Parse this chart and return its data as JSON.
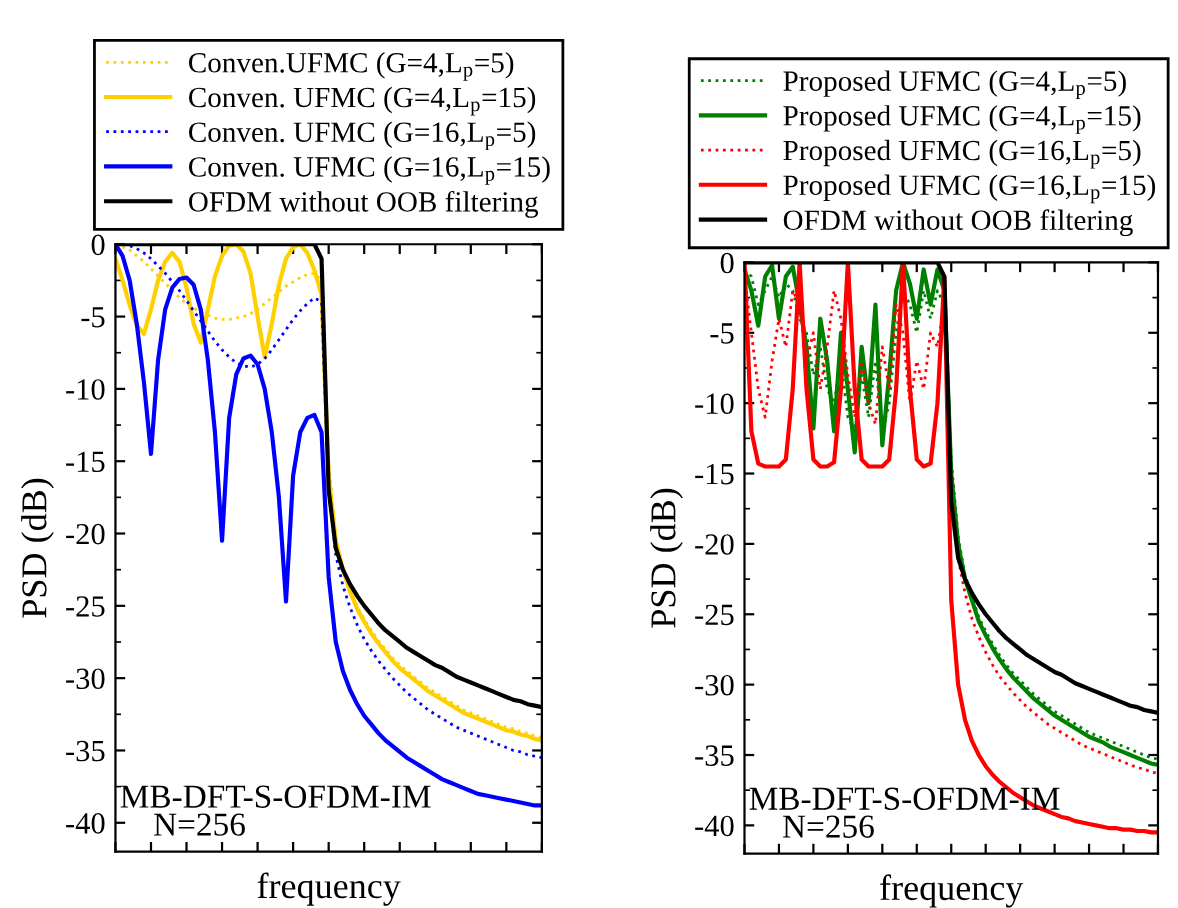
{
  "chart_data": [
    {
      "type": "line",
      "xlabel": "frequency",
      "ylabel": "PSD (dB)",
      "ylim": [
        -42,
        0
      ],
      "yticks": [
        0,
        -5,
        -10,
        -15,
        -20,
        -25,
        -30,
        -35,
        -40
      ],
      "grid": false,
      "legend": "top",
      "annotations": [
        "MB-DFT-S-OFDM-IM\n    N=256"
      ],
      "categories": [
        null,
        null,
        null,
        null,
        null,
        null,
        null,
        null,
        null,
        null,
        null,
        null,
        null,
        null,
        null,
        null,
        null,
        null,
        null,
        null,
        null,
        null,
        null,
        null,
        null,
        null,
        null,
        null,
        null,
        null,
        null,
        null,
        null,
        null,
        null,
        null,
        null,
        null,
        null,
        null,
        null,
        null,
        null,
        null,
        null,
        null,
        null,
        null,
        null,
        null,
        null,
        null,
        null,
        null,
        null,
        null,
        null,
        null,
        null,
        null,
        null
      ],
      "series": [
        {
          "name": "Conven.UFMC (G=4,L$_{p}$=5)",
          "color": "#ffd000",
          "line_style": "dotted",
          "values": [
            0,
            -0.2,
            -0.4,
            -0.8,
            -1.2,
            -1.7,
            -2.2,
            -2.7,
            -3.2,
            -3.7,
            -4.1,
            -4.4,
            -4.7,
            -4.9,
            -5.1,
            -5.2,
            -5.2,
            -5.1,
            -5,
            -4.8,
            -4.5,
            -4.1,
            -3.7,
            -3.3,
            -2.9,
            -2.6,
            -2.3,
            -2.1,
            -2,
            -2.5,
            -15,
            -20.2,
            -22.3,
            -23.8,
            -25,
            -25.9,
            -26.7,
            -27.4,
            -28,
            -28.6,
            -29.1,
            -29.5,
            -29.9,
            -30.3,
            -30.7,
            -31,
            -31.3,
            -31.6,
            -31.9,
            -32.2,
            -32.4,
            -32.6,
            -32.8,
            -33,
            -33.2,
            -33.4,
            -33.5,
            -33.7,
            -33.8,
            -34,
            -34.1
          ]
        },
        {
          "name": "Conven. UFMC (G=4,L$_{p}$=15)",
          "color": "#ffd000",
          "line_style": "solid",
          "values": [
            -1,
            -2.5,
            -4.2,
            -5.6,
            -6.2,
            -4.5,
            -2.5,
            -1.2,
            -0.6,
            -1.2,
            -3,
            -5.5,
            -6.8,
            -4.5,
            -2.2,
            -0.8,
            -0.1,
            0,
            -0.5,
            -2,
            -5,
            -7.8,
            -5.5,
            -2.8,
            -1,
            -0.2,
            0,
            -0.6,
            -1.8,
            -3.5,
            -16,
            -20.5,
            -22.5,
            -24,
            -25.2,
            -26.1,
            -26.9,
            -27.6,
            -28.2,
            -28.8,
            -29.3,
            -29.7,
            -30.1,
            -30.5,
            -30.9,
            -31.2,
            -31.5,
            -31.8,
            -32.1,
            -32.4,
            -32.6,
            -32.8,
            -33,
            -33.2,
            -33.4,
            -33.6,
            -33.7,
            -33.9,
            -34,
            -34.2,
            -34.3
          ]
        },
        {
          "name": "Conven. UFMC (G=16,L$_{p}$=5)",
          "color": "#0000ff",
          "line_style": "dotted",
          "values": [
            0,
            0,
            -0.1,
            -0.3,
            -0.6,
            -1,
            -1.5,
            -2,
            -2.6,
            -3.2,
            -3.9,
            -4.6,
            -5.3,
            -6,
            -6.7,
            -7.3,
            -7.8,
            -8.2,
            -8.4,
            -8.5,
            -8.3,
            -7.9,
            -7.3,
            -6.6,
            -5.9,
            -5.2,
            -4.6,
            -4.1,
            -3.7,
            -4,
            -17,
            -21.5,
            -23.6,
            -25.1,
            -26.3,
            -27.3,
            -28.1,
            -28.8,
            -29.4,
            -30,
            -30.5,
            -31,
            -31.4,
            -31.8,
            -32.2,
            -32.5,
            -32.8,
            -33.1,
            -33.4,
            -33.6,
            -33.8,
            -34,
            -34.2,
            -34.4,
            -34.6,
            -34.8,
            -35,
            -35.1,
            -35.3,
            -35.4,
            -35.5
          ]
        },
        {
          "name": "Conven. UFMC (G=16,L$_{p}$=15)",
          "color": "#0000ff",
          "line_style": "solid",
          "values": [
            0,
            -0.8,
            -2.5,
            -5.5,
            -9.5,
            -14.5,
            -8,
            -4.5,
            -3,
            -2.4,
            -2.3,
            -2.8,
            -4.5,
            -8,
            -13,
            -20.5,
            -12,
            -9,
            -7.9,
            -7.7,
            -8.3,
            -10,
            -13,
            -17.5,
            -24.7,
            -16,
            -13,
            -12,
            -11.8,
            -13,
            -23,
            -27.5,
            -29.5,
            -30.8,
            -31.8,
            -32.6,
            -33.2,
            -33.8,
            -34.3,
            -34.7,
            -35.1,
            -35.5,
            -35.8,
            -36.1,
            -36.4,
            -36.7,
            -37,
            -37.2,
            -37.4,
            -37.6,
            -37.8,
            -38,
            -38.1,
            -38.2,
            -38.3,
            -38.4,
            -38.5,
            -38.6,
            -38.7,
            -38.8,
            -38.8
          ]
        },
        {
          "name": "OFDM without OOB filtering",
          "color": "#000000",
          "line_style": "solid",
          "values": [
            0,
            0,
            0,
            0,
            0,
            0,
            0,
            0,
            0,
            0,
            0,
            0,
            0,
            0,
            0,
            0,
            0,
            0,
            0,
            0,
            0,
            0,
            0,
            0,
            0,
            0,
            0,
            0,
            0,
            -1,
            -17,
            -21,
            -22.5,
            -23.5,
            -24.3,
            -25,
            -25.6,
            -26.2,
            -26.7,
            -27.1,
            -27.5,
            -27.9,
            -28.2,
            -28.5,
            -28.8,
            -29.1,
            -29.3,
            -29.6,
            -29.9,
            -30.1,
            -30.3,
            -30.5,
            -30.7,
            -30.9,
            -31.1,
            -31.3,
            -31.5,
            -31.6,
            -31.8,
            -31.9,
            -32
          ]
        }
      ]
    },
    {
      "type": "line",
      "xlabel": "frequency",
      "ylabel": "PSD (dB)",
      "ylim": [
        -42,
        0
      ],
      "yticks": [
        0,
        -5,
        -10,
        -15,
        -20,
        -25,
        -30,
        -35,
        -40
      ],
      "grid": false,
      "legend": "top",
      "annotations": [
        "MB-DFT-S-OFDM-IM\n    N=256"
      ],
      "categories": [
        null,
        null,
        null,
        null,
        null,
        null,
        null,
        null,
        null,
        null,
        null,
        null,
        null,
        null,
        null,
        null,
        null,
        null,
        null,
        null,
        null,
        null,
        null,
        null,
        null,
        null,
        null,
        null,
        null,
        null,
        null,
        null,
        null,
        null,
        null,
        null,
        null,
        null,
        null,
        null,
        null,
        null,
        null,
        null,
        null,
        null,
        null,
        null,
        null,
        null,
        null,
        null,
        null,
        null,
        null,
        null,
        null,
        null,
        null,
        null,
        null
      ],
      "series": [
        {
          "name": "Proposed UFMC (G=4,L$_{p}$=5)",
          "color": "#008000",
          "line_style": "dotted",
          "values": [
            -0.5,
            -1,
            -3,
            -2,
            -1,
            -2.5,
            -1.5,
            -2,
            -4,
            -5,
            -8,
            -6,
            -9,
            -10,
            -7,
            -11,
            -12,
            -8,
            -11,
            -7,
            -12,
            -10,
            -5,
            -2,
            -3,
            -5,
            -2,
            -4,
            -2,
            -3,
            -14,
            -19.5,
            -22.2,
            -23.7,
            -25.2,
            -26.2,
            -27.1,
            -27.9,
            -28.6,
            -29.2,
            -29.7,
            -30.2,
            -30.7,
            -31.1,
            -31.5,
            -31.9,
            -32.2,
            -32.5,
            -32.8,
            -33.1,
            -33.4,
            -33.6,
            -33.8,
            -34,
            -34.2,
            -34.4,
            -34.6,
            -34.8,
            -35,
            -35.2,
            -35.3
          ]
        },
        {
          "name": "Proposed UFMC (G=4,L$_{p}$=15)",
          "color": "#008000",
          "line_style": "solid",
          "values": [
            -0.5,
            -2,
            -4.5,
            -1,
            -0.2,
            -4,
            -1,
            -0.3,
            -3,
            -6,
            -11.8,
            -4,
            -7,
            -12,
            -5,
            -9,
            -13.5,
            -6,
            -10,
            -3,
            -13,
            -8,
            -2,
            0,
            -1.5,
            -4,
            -0.5,
            -3,
            -0.5,
            -2,
            -15,
            -20,
            -22.5,
            -24,
            -25.5,
            -26.5,
            -27.4,
            -28.2,
            -28.9,
            -29.5,
            -30,
            -30.5,
            -31,
            -31.4,
            -31.8,
            -32.2,
            -32.5,
            -32.8,
            -33.1,
            -33.4,
            -33.7,
            -33.9,
            -34.1,
            -34.4,
            -34.6,
            -34.8,
            -35,
            -35.2,
            -35.4,
            -35.6,
            -35.7
          ]
        },
        {
          "name": "Proposed UFMC (G=16,L$_{p}$=5)",
          "color": "#ff0000",
          "line_style": "dotted",
          "values": [
            -1,
            -5,
            -9,
            -11,
            -7,
            -4,
            -6,
            -2,
            -3,
            -7,
            -5,
            -9,
            -6,
            -2,
            -4,
            -8,
            -11,
            -7,
            -10,
            -11.5,
            -6,
            -9,
            -3,
            -5,
            -10,
            -7,
            -9,
            -5,
            -6,
            -3,
            -16,
            -21,
            -23.5,
            -25.3,
            -26.6,
            -27.7,
            -28.6,
            -29.4,
            -30,
            -30.6,
            -31.1,
            -31.6,
            -32,
            -32.4,
            -32.8,
            -33.1,
            -33.4,
            -33.7,
            -34,
            -34.3,
            -34.5,
            -34.7,
            -34.9,
            -35.1,
            -35.3,
            -35.5,
            -35.7,
            -35.9,
            -36,
            -36.2,
            -36.3
          ]
        },
        {
          "name": "Proposed UFMC (G=16,L$_{p}$=15)",
          "color": "#ff0000",
          "line_style": "solid",
          "values": [
            0,
            -12,
            -14.3,
            -14.5,
            -14.5,
            -14.5,
            -14,
            -9,
            0,
            -9,
            -14,
            -14.5,
            -14.5,
            -14.2,
            -9,
            0,
            -9,
            -14,
            -14.5,
            -14.5,
            -14.5,
            -14,
            -9,
            0,
            -9,
            -14,
            -14.5,
            -14.3,
            -10,
            -1,
            -24,
            -30,
            -32.5,
            -34,
            -35,
            -35.8,
            -36.4,
            -36.9,
            -37.3,
            -37.7,
            -38,
            -38.3,
            -38.6,
            -38.8,
            -39,
            -39.2,
            -39.4,
            -39.5,
            -39.7,
            -39.8,
            -39.9,
            -40,
            -40.1,
            -40.2,
            -40.2,
            -40.3,
            -40.3,
            -40.4,
            -40.4,
            -40.5,
            -40.5
          ]
        },
        {
          "name": "OFDM without OOB filtering",
          "color": "#000000",
          "line_style": "solid",
          "values": [
            0,
            0,
            0,
            0,
            0,
            0,
            0,
            0,
            0,
            0,
            0,
            0,
            0,
            0,
            0,
            0,
            0,
            0,
            0,
            0,
            0,
            0,
            0,
            0,
            0,
            0,
            0,
            0,
            0,
            -1,
            -17,
            -21,
            -22.5,
            -23.5,
            -24.3,
            -25,
            -25.6,
            -26.2,
            -26.7,
            -27.1,
            -27.5,
            -27.9,
            -28.2,
            -28.5,
            -28.8,
            -29.1,
            -29.3,
            -29.6,
            -29.9,
            -30.1,
            -30.3,
            -30.5,
            -30.7,
            -30.9,
            -31.1,
            -31.3,
            -31.5,
            -31.6,
            -31.8,
            -31.9,
            -32
          ]
        }
      ]
    }
  ]
}
